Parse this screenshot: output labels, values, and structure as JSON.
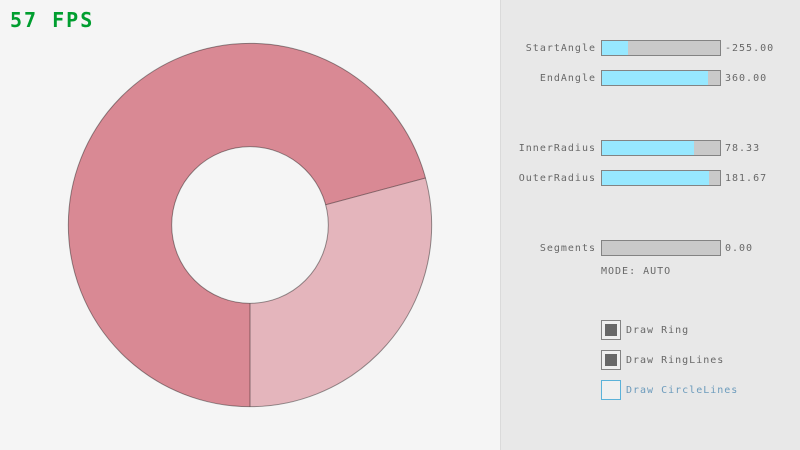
{
  "fps": {
    "label": "57 FPS"
  },
  "ring": {
    "start_angle": "-255.00",
    "end_angle": "360.00",
    "inner_radius": "78.33",
    "outer_radius": "181.67",
    "segments": "0.00",
    "mode": "AUTO"
  },
  "panel": {
    "sliders": [
      {
        "label": "StartAngle",
        "value": "-255.00",
        "fill_percent": 21.67
      },
      {
        "label": "EndAngle",
        "value": "360.00",
        "fill_percent": 90.0
      },
      {
        "label": "InnerRadius",
        "value": "78.33",
        "fill_percent": 78.33
      },
      {
        "label": "OuterRadius",
        "value": "181.67",
        "fill_percent": 90.83
      },
      {
        "label": "Segments",
        "value": "0.00",
        "fill_percent": 0
      }
    ],
    "mode_text": "MODE: AUTO",
    "checkboxes": [
      {
        "label": "Draw Ring",
        "checked": true,
        "focused": false
      },
      {
        "label": "Draw RingLines",
        "checked": true,
        "focused": false
      },
      {
        "label": "Draw CircleLines",
        "checked": false,
        "focused": true
      }
    ]
  },
  "colors": {
    "background": "#f5f5f5",
    "panel_bg": "#e8e8e8",
    "panel_border": "#dadada",
    "ring_light": "#e4b5bc",
    "ring_dark": "#d98994",
    "ring_line": "rgba(0,0,0,0.4)",
    "slider_track": "#c9c9c9",
    "slider_fill": "#97e8ff",
    "widget_border": "#838383",
    "checkbox_bg": "#f0f0f0",
    "check_fill": "#686868",
    "focus_border": "#5bb2d9",
    "focus_text": "#6c9bbc",
    "text": "#686868",
    "fps": "#009e2f"
  }
}
